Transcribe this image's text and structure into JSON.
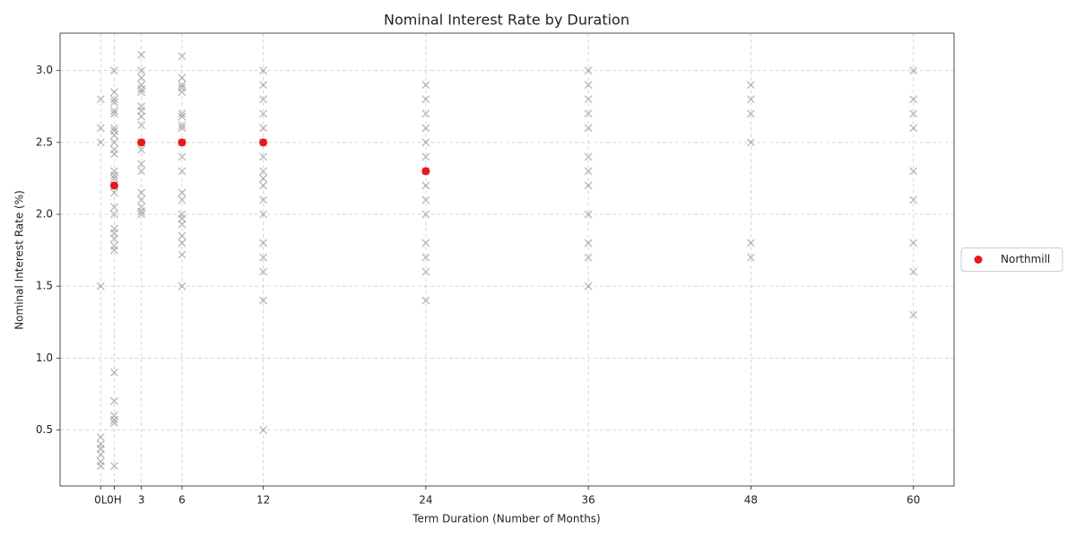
{
  "chart_data": {
    "type": "scatter",
    "title": "Nominal Interest Rate by Duration",
    "x_label": "Term Duration (Number of Months)",
    "y_label": "Nominal Interest Rate (%)",
    "xlim": [
      -3,
      63
    ],
    "ylim": [
      0.11,
      3.26
    ],
    "xticks": [
      {
        "value": 0,
        "label": "0L"
      },
      {
        "value": 1,
        "label": "0H"
      },
      3,
      6,
      12,
      24,
      36,
      48,
      60
    ],
    "yticks": [
      0.5,
      {
        "value": 1,
        "label": "1.0"
      },
      1.5,
      {
        "value": 2,
        "label": "2.0"
      },
      2.5,
      {
        "value": 3,
        "label": "3.0"
      }
    ],
    "grid": true,
    "legend": "right",
    "series": [
      {
        "color": "#808080",
        "marker": "x",
        "x": [
          0,
          0,
          0,
          0,
          0,
          0,
          0,
          0,
          0,
          0,
          1,
          1,
          1,
          1,
          1,
          1,
          1,
          1,
          1,
          1,
          1,
          1,
          1,
          1,
          1,
          1,
          1,
          1,
          1,
          1,
          1,
          1,
          1,
          1,
          1,
          1,
          1,
          1,
          1,
          1,
          3,
          3,
          3,
          3,
          3,
          3,
          3,
          3,
          3,
          3,
          3,
          3,
          3,
          3,
          3,
          3,
          3,
          3,
          3,
          6,
          6,
          6,
          6,
          6,
          6,
          6,
          6,
          6,
          6,
          6,
          6,
          6,
          6,
          6,
          6,
          6,
          6,
          6,
          6,
          6,
          12,
          12,
          12,
          12,
          12,
          12,
          12,
          12,
          12,
          12,
          12,
          12,
          12,
          12,
          12,
          12,
          12,
          24,
          24,
          24,
          24,
          24,
          24,
          24,
          24,
          24,
          24,
          24,
          24,
          24,
          24,
          36,
          36,
          36,
          36,
          36,
          36,
          36,
          36,
          36,
          36,
          36,
          36,
          48,
          48,
          48,
          48,
          48,
          48,
          60,
          60,
          60,
          60,
          60,
          60,
          60,
          60,
          60
        ],
        "values": [
          2.8,
          2.6,
          2.5,
          1.5,
          0.45,
          0.4,
          0.37,
          0.33,
          0.28,
          0.25,
          3.0,
          2.85,
          2.8,
          2.78,
          2.72,
          2.7,
          2.6,
          2.58,
          2.55,
          2.5,
          2.45,
          2.42,
          2.3,
          2.27,
          2.25,
          2.2,
          2.15,
          2.05,
          2.0,
          1.9,
          1.87,
          1.83,
          1.78,
          1.75,
          0.9,
          0.7,
          0.6,
          0.57,
          0.55,
          0.25,
          3.11,
          3.0,
          2.95,
          2.9,
          2.87,
          2.85,
          2.75,
          2.72,
          2.68,
          2.62,
          2.5,
          2.45,
          2.35,
          2.3,
          2.15,
          2.1,
          2.05,
          2.02,
          2.0,
          3.1,
          2.95,
          2.9,
          2.88,
          2.85,
          2.7,
          2.68,
          2.62,
          2.6,
          2.5,
          2.4,
          2.3,
          2.15,
          2.1,
          2.0,
          1.97,
          1.93,
          1.85,
          1.8,
          1.72,
          1.5,
          3.0,
          2.9,
          2.8,
          2.7,
          2.6,
          2.5,
          2.4,
          2.3,
          2.25,
          2.2,
          2.1,
          2.0,
          1.8,
          1.7,
          1.6,
          1.4,
          0.5,
          2.9,
          2.8,
          2.7,
          2.6,
          2.5,
          2.4,
          2.3,
          2.2,
          2.1,
          2.0,
          1.8,
          1.7,
          1.6,
          1.4,
          3.0,
          2.9,
          2.8,
          2.7,
          2.6,
          2.4,
          2.3,
          2.2,
          2.0,
          1.8,
          1.7,
          1.5,
          2.9,
          2.8,
          2.7,
          2.5,
          1.8,
          1.7,
          3.0,
          2.8,
          2.7,
          2.6,
          2.3,
          2.1,
          1.8,
          1.6,
          1.3
        ]
      },
      {
        "name": "Northmill",
        "color": "#e41a1c",
        "marker": "o",
        "x": [
          1,
          3,
          6,
          12,
          24
        ],
        "values": [
          2.2,
          2.5,
          2.5,
          2.5,
          2.3
        ]
      }
    ]
  }
}
